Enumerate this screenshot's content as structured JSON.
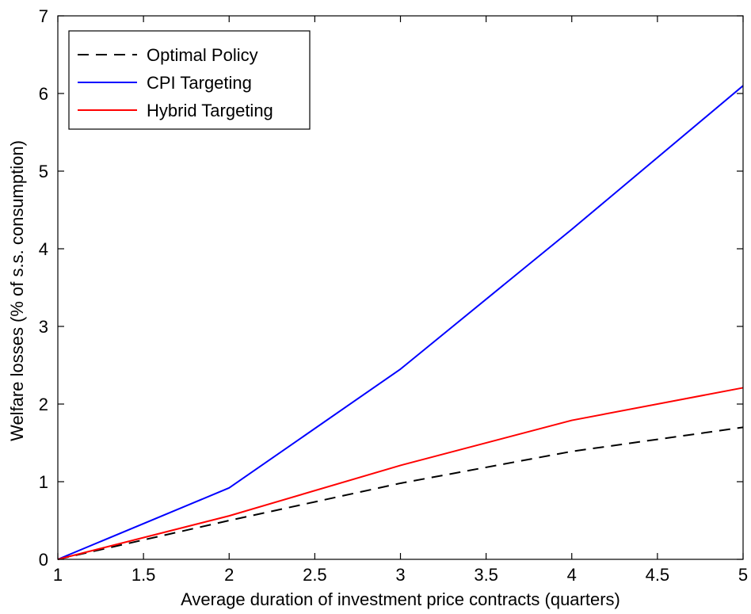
{
  "chart_data": {
    "type": "line",
    "title": "",
    "xlabel": "Average duration of investment price contracts (quarters)",
    "ylabel": "Welfare losses (% of s.s. consumption)",
    "xlim": [
      1,
      5
    ],
    "ylim": [
      0,
      7
    ],
    "xticks": [
      1,
      1.5,
      2,
      2.5,
      3,
      3.5,
      4,
      4.5,
      5
    ],
    "yticks": [
      0,
      1,
      2,
      3,
      4,
      5,
      6,
      7
    ],
    "xtick_labels": [
      "1",
      "1.5",
      "2",
      "2.5",
      "3",
      "3.5",
      "4",
      "4.5",
      "5"
    ],
    "ytick_labels": [
      "0",
      "1",
      "2",
      "3",
      "4",
      "5",
      "6",
      "7"
    ],
    "grid": false,
    "legend_position": "top-left",
    "x": [
      1,
      2,
      3,
      4,
      5
    ],
    "series": [
      {
        "name": "Optimal Policy",
        "color": "#000000",
        "dash": "dashed",
        "values": [
          0,
          0.5,
          0.98,
          1.39,
          1.7
        ]
      },
      {
        "name": "CPI Targeting",
        "color": "#0000ff",
        "dash": "solid",
        "values": [
          0,
          0.92,
          2.45,
          4.25,
          6.1
        ]
      },
      {
        "name": "Hybrid Targeting",
        "color": "#ff0000",
        "dash": "solid",
        "values": [
          0,
          0.56,
          1.21,
          1.79,
          2.21
        ]
      }
    ]
  }
}
